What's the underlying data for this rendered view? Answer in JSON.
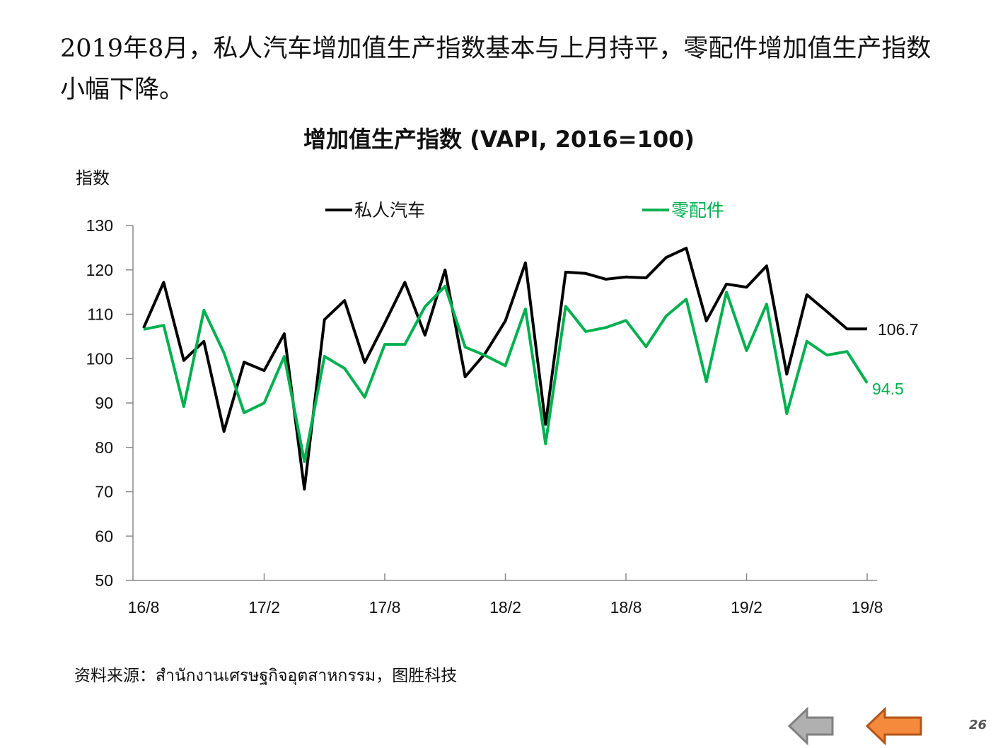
{
  "headline": "2019年8月，私人汽车增加值生产指数基本与上月持平，零配件增加值生产指数小幅下降。",
  "source": "资料来源：สำนักงานเศรษฐกิจอุตสาหกรรม，图胜科技",
  "page_number": "26",
  "nav": {
    "prev": "back-arrow",
    "next": "forward-arrow"
  },
  "chart_data": {
    "type": "line",
    "title": "增加值生产指数 (VAPI, 2016=100)",
    "ylabel": "指数",
    "xlabel": "",
    "ylim": [
      50,
      130
    ],
    "yticks": [
      "50",
      "60",
      "70",
      "80",
      "90",
      "100",
      "110",
      "120",
      "130"
    ],
    "xtick_labels": [
      "16/8",
      "17/2",
      "17/8",
      "18/2",
      "18/8",
      "19/2",
      "19/8"
    ],
    "grid": false,
    "legend": "top",
    "x_months": 37,
    "series": [
      {
        "name": "私人汽车",
        "color": "#000000",
        "end_label": "106.7",
        "values": [
          106.9,
          117.2,
          99.6,
          103.9,
          83.6,
          99.2,
          97.3,
          105.6,
          70.6,
          108.8,
          113.1,
          99.1,
          108.0,
          117.2,
          105.3,
          120.0,
          95.9,
          101.2,
          108.5,
          121.6,
          85.2,
          119.5,
          119.2,
          117.9,
          118.4,
          118.2,
          122.8,
          124.9,
          108.5,
          116.8,
          116.1,
          120.9,
          96.5,
          114.4,
          110.6,
          106.7,
          106.7
        ]
      },
      {
        "name": "零配件",
        "color": "#00B050",
        "end_label": "94.5",
        "values": [
          106.6,
          107.5,
          89.2,
          110.9,
          101.3,
          87.8,
          90.0,
          100.5,
          76.8,
          100.5,
          97.8,
          91.3,
          103.2,
          103.2,
          111.7,
          116.3,
          102.6,
          100.7,
          98.4,
          111.2,
          80.8,
          111.8,
          106.1,
          107.0,
          108.6,
          102.7,
          109.6,
          113.4,
          94.8,
          115.0,
          101.8,
          112.3,
          87.6,
          103.9,
          100.8,
          101.6,
          94.5
        ]
      }
    ]
  }
}
